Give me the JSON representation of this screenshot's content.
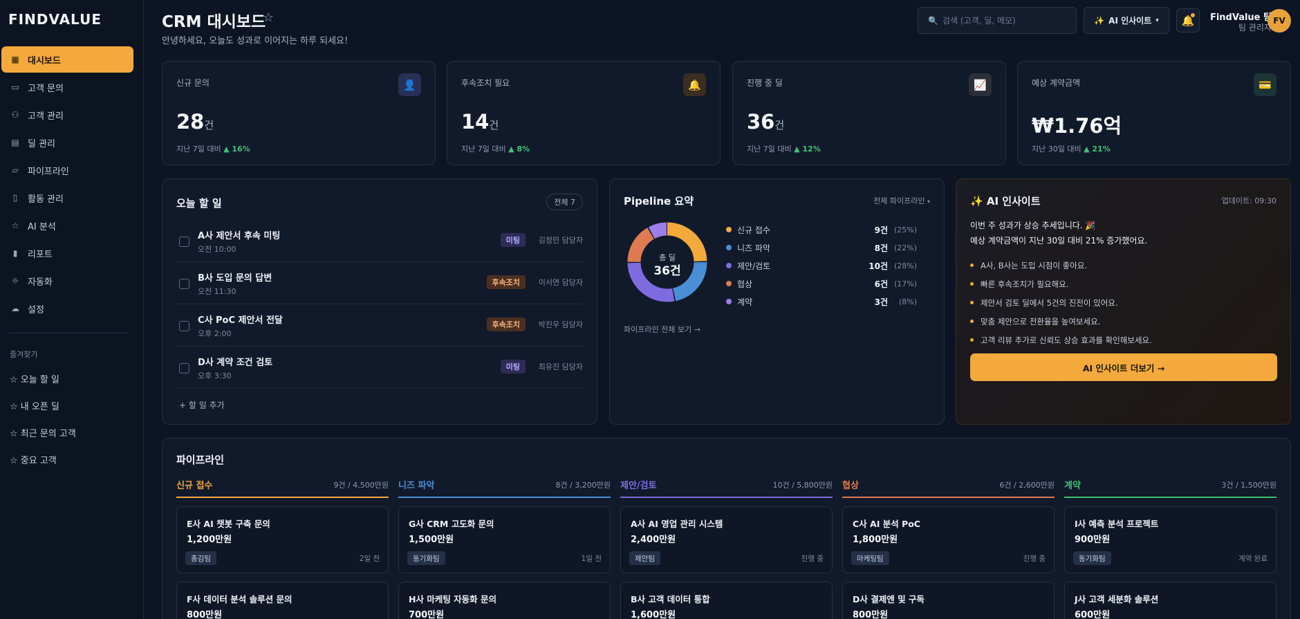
{
  "sidebar": {
    "logo": "FINDVALUE",
    "items": [
      {
        "label": "대시보드",
        "icon": "grid-icon"
      },
      {
        "label": "고객 문의",
        "icon": "chat-icon"
      },
      {
        "label": "고객 관리",
        "icon": "users-icon"
      },
      {
        "label": "딜 관리",
        "icon": "calendar-icon"
      },
      {
        "label": "파이프라인",
        "icon": "folder-icon"
      },
      {
        "label": "활동 관리",
        "icon": "clipboard-icon"
      },
      {
        "label": "AI 분석",
        "icon": "star-icon"
      },
      {
        "label": "리포트",
        "icon": "bar-chart-icon"
      },
      {
        "label": "자동화",
        "icon": "sun-icon"
      },
      {
        "label": "설정",
        "icon": "cloud-icon"
      }
    ],
    "favorites_title": "즐겨찾기",
    "favorites": [
      "☆ 오늘 할 일",
      "☆ 내 오픈 딜",
      "☆ 최근 문의 고객",
      "☆ 중요 고객"
    ]
  },
  "header": {
    "title": "CRM 대시보드",
    "subtitle": "안녕하세요, 오늘도 성과로 이어지는 하루 되세요!",
    "search_placeholder": "검색 (고객, 딜, 메모)",
    "ai_button": "AI 인사이트",
    "user_name": "FindValue 팀",
    "user_role": "팀 관리자",
    "avatar": "FV"
  },
  "kpis": [
    {
      "label": "신규 문의",
      "value": "28",
      "unit": "건",
      "compare": "지난 7일 대비",
      "change": "16%",
      "icon": "user-icon",
      "icon_glyph": "👤",
      "icon_bg": "#2a2f55"
    },
    {
      "label": "후속조치 필요",
      "value": "14",
      "unit": "건",
      "compare": "지난 7일 대비",
      "change": "8%",
      "icon": "bell-icon",
      "icon_glyph": "🔔",
      "icon_bg": "#3a2e22"
    },
    {
      "label": "진행 중 딜",
      "value": "36",
      "unit": "건",
      "compare": "지난 7일 대비",
      "change": "12%",
      "icon": "trend-icon",
      "icon_glyph": "📈",
      "icon_bg": "#2a2f3a"
    },
    {
      "label": "예상 계약금액",
      "value": "₩1.76억",
      "unit": "",
      "compare": "지난 30일 대비",
      "change": "21%",
      "icon": "card-icon",
      "icon_glyph": "💳",
      "icon_bg": "#1d3435"
    }
  ],
  "todo": {
    "title": "오늘 할 일",
    "total": "전체 7",
    "items": [
      {
        "title": "A사 제안서 후속 미팅",
        "time": "오전 10:00",
        "tag": "미팅",
        "tag_type": "meet",
        "owner": "김정민 담당자"
      },
      {
        "title": "B사 도입 문의 답변",
        "time": "오전 11:30",
        "tag": "후속조치",
        "tag_type": "follow",
        "owner": "이서연 담당자"
      },
      {
        "title": "C사 PoC 제안서 전달",
        "time": "오후 2:00",
        "tag": "후속조치",
        "tag_type": "follow",
        "owner": "박진우 담당자"
      },
      {
        "title": "D사 계약 조건 검토",
        "time": "오후 3:30",
        "tag": "미팅",
        "tag_type": "meet",
        "owner": "최유진 담당자"
      }
    ],
    "add": "+ 할 일 추가"
  },
  "pipeline_summary": {
    "title": "Pipeline 요약",
    "filter": "전체 파이프라인",
    "center_label": "총 딜",
    "center_value": "36건",
    "stages": [
      {
        "name": "신규 접수",
        "count": "9건",
        "pct": "(25%)",
        "value": 25,
        "color": "#f3a93b"
      },
      {
        "name": "니즈 파악",
        "count": "8건",
        "pct": "(22%)",
        "value": 22,
        "color": "#4a8fd6"
      },
      {
        "name": "제안/검토",
        "count": "10건",
        "pct": "(28%)",
        "value": 28,
        "color": "#7f6be0"
      },
      {
        "name": "협상",
        "count": "6건",
        "pct": "(17%)",
        "value": 17,
        "color": "#e07a52"
      },
      {
        "name": "계약",
        "count": "3건",
        "pct": "(8%)",
        "value": 8,
        "color": "#9c7fe8"
      }
    ],
    "link": "파이프라인 전체 보기 →"
  },
  "ai_insight": {
    "title": "✨ AI 인사이트",
    "updated": "업데이트: 09:30",
    "message1": "이번 주 성과가 상승 추세입니다. 🎉",
    "message2": "예상 계약금액이 지난 30일 대비 21% 증가했어요.",
    "bullets": [
      "A사, B사는 도입 시점이 좋아요.",
      "빠른 후속조치가 필요해요.",
      "제안서 검토 딜에서 5건의 진전이 있어요.",
      "맞춤 제안으로 전환율을 높여보세요.",
      "고객 리뷰 추가로 신뢰도 상승 효과를 확인해보세요."
    ],
    "button": "AI 인사이트 더보기 →"
  },
  "pipeline": {
    "title": "파이프라인",
    "columns": [
      {
        "name": "신규 접수",
        "summary": "9건 / 4,500만원",
        "color": "#f3a93b",
        "deals": [
          {
            "name": "E사 AI 챗봇 구축 문의",
            "amount": "1,200만원",
            "tag": "총김팀",
            "status": "2일 전"
          },
          {
            "name": "F사 데이터 분석 솔루션 문의",
            "amount": "800만원",
            "tag": "",
            "status": ""
          }
        ]
      },
      {
        "name": "니즈 파악",
        "summary": "8건 / 3,200만원",
        "color": "#4a8fd6",
        "deals": [
          {
            "name": "G사 CRM 고도화 문의",
            "amount": "1,500만원",
            "tag": "동기화팀",
            "status": "1일 전"
          },
          {
            "name": "H사 마케팅 자동화 문의",
            "amount": "700만원",
            "tag": "",
            "status": ""
          }
        ]
      },
      {
        "name": "제안/검토",
        "summary": "10건 / 5,800만원",
        "color": "#7f6be0",
        "deals": [
          {
            "name": "A사 AI 영업 관리 시스템",
            "amount": "2,400만원",
            "tag": "제안팀",
            "status": "진행 중"
          },
          {
            "name": "B사 고객 데이터 통합",
            "amount": "1,600만원",
            "tag": "",
            "status": ""
          }
        ]
      },
      {
        "name": "협상",
        "summary": "6건 / 2,600만원",
        "color": "#e07a52",
        "deals": [
          {
            "name": "C사 AI 분석 PoC",
            "amount": "1,800만원",
            "tag": "마케팅팀",
            "status": "진행 중"
          },
          {
            "name": "D사 결제엔 및 구독",
            "amount": "800만원",
            "tag": "",
            "status": ""
          }
        ]
      },
      {
        "name": "계약",
        "summary": "3건 / 1,500만원",
        "color": "#3fbf6e",
        "deals": [
          {
            "name": "I사 예측 분석 프로젝트",
            "amount": "900만원",
            "tag": "동기화팀",
            "status": "계약 완료"
          },
          {
            "name": "J사 고객 세분화 솔루션",
            "amount": "600만원",
            "tag": "",
            "status": ""
          }
        ]
      }
    ]
  }
}
